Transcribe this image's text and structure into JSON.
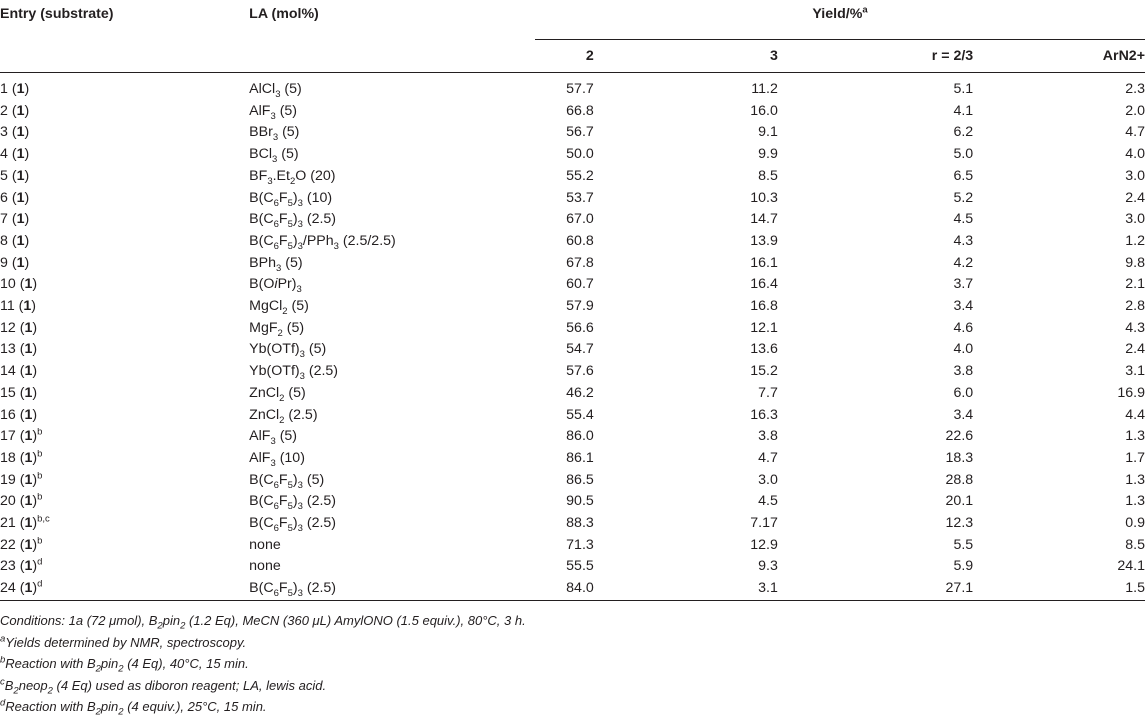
{
  "header": {
    "entry": "Entry (substrate)",
    "la": "LA (mol%)",
    "yield": "Yield/%",
    "yield_sup": "a",
    "cols": [
      "2",
      "3",
      "r = 2/3",
      "ArN2+"
    ]
  },
  "rows": [
    {
      "entry": "1",
      "sub": "1",
      "sup": "",
      "la": [
        "AlCl",
        "3",
        " (5)"
      ],
      "v2": "57.7",
      "v3": "11.2",
      "r": "5.1",
      "arn": "2.3"
    },
    {
      "entry": "2",
      "sub": "1",
      "sup": "",
      "la": [
        "AlF",
        "3",
        " (5)"
      ],
      "v2": "66.8",
      "v3": "16.0",
      "r": "4.1",
      "arn": "2.0"
    },
    {
      "entry": "3",
      "sub": "1",
      "sup": "",
      "la": [
        "BBr",
        "3",
        " (5)"
      ],
      "v2": "56.7",
      "v3": "9.1",
      "r": "6.2",
      "arn": "4.7"
    },
    {
      "entry": "4",
      "sub": "1",
      "sup": "",
      "la": [
        "BCl",
        "3",
        " (5)"
      ],
      "v2": "50.0",
      "v3": "9.9",
      "r": "5.0",
      "arn": "4.0"
    },
    {
      "entry": "5",
      "sub": "1",
      "sup": "",
      "la": [
        "BF",
        "3",
        ".Et",
        "2",
        "O (20)"
      ],
      "v2": "55.2",
      "v3": "8.5",
      "r": "6.5",
      "arn": "3.0"
    },
    {
      "entry": "6",
      "sub": "1",
      "sup": "",
      "la": [
        "B(C",
        "6",
        "F",
        "5",
        ")",
        "3",
        " (10)"
      ],
      "v2": "53.7",
      "v3": "10.3",
      "r": "5.2",
      "arn": "2.4"
    },
    {
      "entry": "7",
      "sub": "1",
      "sup": "",
      "la": [
        "B(C",
        "6",
        "F",
        "5",
        ")",
        "3",
        " (2.5)"
      ],
      "v2": "67.0",
      "v3": "14.7",
      "r": "4.5",
      "arn": "3.0"
    },
    {
      "entry": "8",
      "sub": "1",
      "sup": "",
      "la": [
        "B(C",
        "6",
        "F",
        "5",
        ")",
        "3",
        "/PPh",
        "3",
        " (2.5/2.5)"
      ],
      "v2": "60.8",
      "v3": "13.9",
      "r": "4.3",
      "arn": "1.2"
    },
    {
      "entry": "9",
      "sub": "1",
      "sup": "",
      "la": [
        "BPh",
        "3",
        " (5)"
      ],
      "v2": "67.8",
      "v3": "16.1",
      "r": "4.2",
      "arn": "9.8"
    },
    {
      "entry": "10",
      "sub": "1",
      "sup": "",
      "la": [
        "B(O",
        "i",
        "Pr)",
        "3",
        ""
      ],
      "v2": "60.7",
      "v3": "16.4",
      "r": "3.7",
      "arn": "2.1"
    },
    {
      "entry": "11",
      "sub": "1",
      "sup": "",
      "la": [
        "MgCl",
        "2",
        " (5)"
      ],
      "v2": "57.9",
      "v3": "16.8",
      "r": "3.4",
      "arn": "2.8"
    },
    {
      "entry": "12",
      "sub": "1",
      "sup": "",
      "la": [
        "MgF",
        "2",
        " (5)"
      ],
      "v2": "56.6",
      "v3": "12.1",
      "r": "4.6",
      "arn": "4.3"
    },
    {
      "entry": "13",
      "sub": "1",
      "sup": "",
      "la": [
        "Yb(OTf)",
        "3",
        " (5)"
      ],
      "v2": "54.7",
      "v3": "13.6",
      "r": "4.0",
      "arn": "2.4"
    },
    {
      "entry": "14",
      "sub": "1",
      "sup": "",
      "la": [
        "Yb(OTf)",
        "3",
        " (2.5)"
      ],
      "v2": "57.6",
      "v3": "15.2",
      "r": "3.8",
      "arn": "3.1"
    },
    {
      "entry": "15",
      "sub": "1",
      "sup": "",
      "la": [
        "ZnCl",
        "2",
        " (5)"
      ],
      "v2": "46.2",
      "v3": "7.7",
      "r": "6.0",
      "arn": "16.9"
    },
    {
      "entry": "16",
      "sub": "1",
      "sup": "",
      "la": [
        "ZnCl",
        "2",
        " (2.5)"
      ],
      "v2": "55.4",
      "v3": "16.3",
      "r": "3.4",
      "arn": "4.4"
    },
    {
      "entry": "17",
      "sub": "1",
      "sup": "b",
      "la": [
        "AlF",
        "3",
        " (5)"
      ],
      "v2": "86.0",
      "v3": "3.8",
      "r": "22.6",
      "arn": "1.3"
    },
    {
      "entry": "18",
      "sub": "1",
      "sup": "b",
      "la": [
        "AlF",
        "3",
        " (10)"
      ],
      "v2": "86.1",
      "v3": "4.7",
      "r": "18.3",
      "arn": "1.7"
    },
    {
      "entry": "19",
      "sub": "1",
      "sup": "b",
      "la": [
        "B(C",
        "6",
        "F",
        "5",
        ")",
        "3",
        " (5)"
      ],
      "v2": "86.5",
      "v3": "3.0",
      "r": "28.8",
      "arn": "1.3"
    },
    {
      "entry": "20",
      "sub": "1",
      "sup": "b",
      "la": [
        "B(C",
        "6",
        "F",
        "5",
        ")",
        "3",
        " (2.5)"
      ],
      "v2": "90.5",
      "v3": "4.5",
      "r": "20.1",
      "arn": "1.3"
    },
    {
      "entry": "21",
      "sub": "1",
      "sup": "b,c",
      "la": [
        "B(C",
        "6",
        "F",
        "5",
        ")",
        "3",
        " (2.5)"
      ],
      "v2": "88.3",
      "v3": "7.17",
      "r": "12.3",
      "arn": "0.9"
    },
    {
      "entry": "22",
      "sub": "1",
      "sup": "b",
      "la": [
        "none"
      ],
      "v2": "71.3",
      "v3": "12.9",
      "r": "5.5",
      "arn": "8.5"
    },
    {
      "entry": "23",
      "sub": "1",
      "sup": "d",
      "la": [
        "none"
      ],
      "v2": "55.5",
      "v3": "9.3",
      "r": "5.9",
      "arn": "24.1"
    },
    {
      "entry": "24",
      "sub": "1",
      "sup": "d",
      "la": [
        "B(C",
        "6",
        "F",
        "5",
        ")",
        "3",
        " (2.5)"
      ],
      "v2": "84.0",
      "v3": "3.1",
      "r": "27.1",
      "arn": "1.5"
    }
  ],
  "notes": [
    {
      "sup": "",
      "parts": [
        "Conditions: 1a (72 μmol), B",
        "2",
        "pin",
        "2",
        " (1.2 Eq), MeCN (360 μL) AmylONO (1.5 equiv.), 80°C, 3 h."
      ]
    },
    {
      "sup": "a",
      "parts": [
        "Yields determined by NMR, spectroscopy."
      ]
    },
    {
      "sup": "b",
      "parts": [
        "Reaction with B",
        "2",
        "pin",
        "2",
        " (4 Eq), 40°C, 15 min."
      ]
    },
    {
      "sup": "c",
      "parts": [
        "B",
        "2",
        "neop",
        "2",
        " (4 Eq) used as diboron reagent; LA, lewis acid."
      ]
    },
    {
      "sup": "d",
      "parts": [
        "Reaction with B",
        "2",
        "pin",
        "2",
        " (4 equiv.), 25°C, 15 min."
      ]
    }
  ]
}
